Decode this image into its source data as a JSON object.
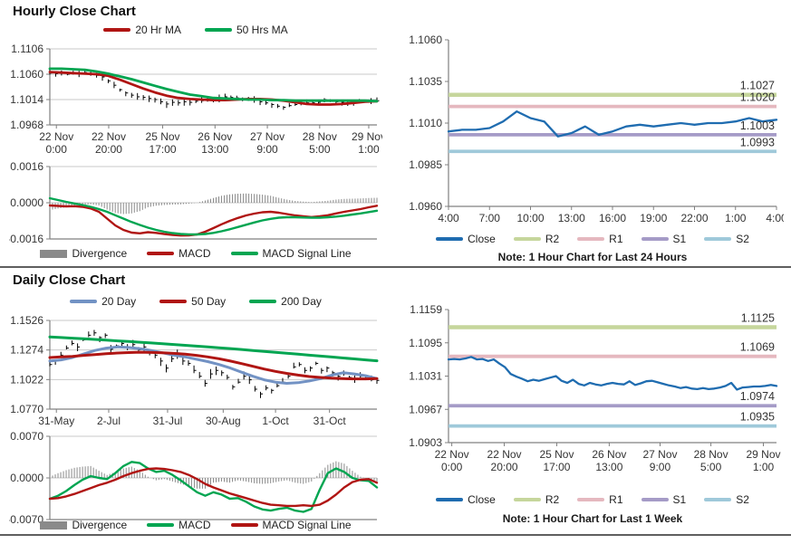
{
  "sections": [
    {
      "title": "Hourly Close Chart"
    },
    {
      "title": "Daily Close Chart"
    }
  ],
  "colors": {
    "red": "#b01513",
    "green": "#00a551",
    "blue20": "#7292c4",
    "close_blue": "#1f6cb0",
    "r2": "#c6d69c",
    "r1": "#e5b8bf",
    "s1": "#a59bc7",
    "s2": "#9fc9da",
    "divergence": "#8a8a8a",
    "price": "#000000",
    "grid": "#c9c9c9",
    "axis": "#808080"
  },
  "chart_data": [
    {
      "id": "hourly_close",
      "type": "line",
      "title": "Hourly Close Chart",
      "ylim": [
        1.0968,
        1.1106
      ],
      "yticks": [
        "1.0968",
        "1.1014",
        "1.1060",
        "1.1106"
      ],
      "xticks": [
        [
          "22 Nov",
          "0:00"
        ],
        [
          "22 Nov",
          "20:00"
        ],
        [
          "25 Nov",
          "17:00"
        ],
        [
          "26 Nov",
          "13:00"
        ],
        [
          "27 Nov",
          "9:00"
        ],
        [
          "28 Nov",
          "5:00"
        ],
        [
          "29 Nov",
          "1:00"
        ]
      ],
      "xtick_pos": [
        0.02,
        0.18,
        0.345,
        0.505,
        0.665,
        0.825,
        0.975
      ],
      "grid": true,
      "series": [
        {
          "name": "Close",
          "kind": "pricebars",
          "color": "#000000",
          "legend": false,
          "wick": 0.0006,
          "values": [
            1.1062,
            1.1061,
            1.1062,
            1.106,
            1.1062,
            1.1061,
            1.1063,
            1.106,
            1.1058,
            1.1055,
            1.1048,
            1.104,
            1.1032,
            1.1026,
            1.1022,
            1.1019,
            1.1018,
            1.1016,
            1.1014,
            1.101,
            1.1006,
            1.1009,
            1.1008,
            1.101,
            1.1009,
            1.1011,
            1.1012,
            1.1013,
            1.1014,
            1.1016,
            1.1019,
            1.1018,
            1.1017,
            1.1015,
            1.1014,
            1.1013,
            1.101,
            1.1008,
            1.1005,
            1.1002,
            1.1,
            1.1003,
            1.1005,
            1.1007,
            1.1008,
            1.1008,
            1.1009,
            1.1014,
            1.1012,
            1.101,
            1.1009,
            1.1008,
            1.1009,
            1.101,
            1.1011,
            1.1012,
            1.1012
          ]
        },
        {
          "name": "20 Hr MA",
          "kind": "line",
          "color": "#b01513",
          "width": 2.8,
          "values": [
            1.1064,
            1.1063,
            1.1062,
            1.1061,
            1.106,
            1.1057,
            1.105,
            1.1042,
            1.1034,
            1.1027,
            1.1021,
            1.1017,
            1.1015,
            1.1014,
            1.1013,
            1.1013,
            1.1014,
            1.1015,
            1.1015,
            1.1014,
            1.1012,
            1.1009,
            1.1006,
            1.1005,
            1.1005,
            1.1006,
            1.1008,
            1.101,
            1.1011
          ]
        },
        {
          "name": "50 Hrs MA",
          "kind": "line",
          "color": "#00a551",
          "width": 2.8,
          "values": [
            1.107,
            1.107,
            1.1069,
            1.1068,
            1.1065,
            1.1061,
            1.1056,
            1.1051,
            1.1045,
            1.1039,
            1.1033,
            1.1028,
            1.1023,
            1.102,
            1.1017,
            1.1016,
            1.1015,
            1.1014,
            1.1014,
            1.1013,
            1.1013,
            1.1012,
            1.1012,
            1.1012,
            1.1012,
            1.1012,
            1.1012,
            1.1012,
            1.1011
          ]
        }
      ]
    },
    {
      "id": "hourly_macd",
      "type": "line",
      "ylim": [
        -0.0016,
        0.0016
      ],
      "yticks": [
        "-0.0016",
        "0.0000",
        "0.0016"
      ],
      "xticks": [],
      "xtick_pos": [],
      "grid": true,
      "series": [
        {
          "name": "Divergence",
          "kind": "bars",
          "color": "#8a8a8a",
          "values": [
            -0.00032,
            -0.00026,
            -0.0002,
            -0.00012,
            -8e-05,
            -7e-05,
            -0.00012,
            -0.0003,
            -0.00045,
            -0.0005,
            -0.00047,
            -0.00037,
            -0.0002,
            -0.00013,
            -0.0001,
            -8e-05,
            -7e-05,
            -4e-05,
            0,
            0.0001,
            0.00021,
            0.00031,
            0.00037,
            0.0004,
            0.00041,
            0.00039,
            0.00036,
            0.00031,
            0.00022,
            0.00014,
            8e-05,
            5e-05,
            3e-05,
            6e-05,
            9e-05,
            0.00014,
            0.00017,
            0.00018,
            0.00019,
            0.00021,
            0.00022
          ]
        },
        {
          "name": "MACD",
          "kind": "line",
          "color": "#b01513",
          "width": 2.4,
          "values": [
            -0.00012,
            -0.00014,
            -0.00016,
            -0.00015,
            -0.00018,
            -0.00025,
            -0.0004,
            -0.0007,
            -0.001,
            -0.0012,
            -0.00132,
            -0.00135,
            -0.0013,
            -0.00133,
            -0.00138,
            -0.00142,
            -0.00145,
            -0.00144,
            -0.0014,
            -0.00128,
            -0.00112,
            -0.00095,
            -0.0008,
            -0.00067,
            -0.00056,
            -0.00048,
            -0.00042,
            -0.0004,
            -0.00044,
            -0.0005,
            -0.00056,
            -0.0006,
            -0.00063,
            -0.0006,
            -0.00055,
            -0.00047,
            -0.0004,
            -0.00034,
            -0.00028,
            -0.0002,
            -0.00013
          ]
        },
        {
          "name": "MACD Signal Line",
          "kind": "line",
          "color": "#00a551",
          "width": 2.4,
          "values": [
            0.0002,
            0.00012,
            4e-05,
            -3e-05,
            -0.0001,
            -0.00018,
            -0.00028,
            -0.0004,
            -0.00055,
            -0.0007,
            -0.00085,
            -0.00098,
            -0.0011,
            -0.0012,
            -0.00128,
            -0.00134,
            -0.00138,
            -0.0014,
            -0.0014,
            -0.00138,
            -0.00133,
            -0.00126,
            -0.00117,
            -0.00107,
            -0.00097,
            -0.00087,
            -0.00078,
            -0.00071,
            -0.00066,
            -0.00064,
            -0.00064,
            -0.00065,
            -0.00066,
            -0.00066,
            -0.00064,
            -0.00061,
            -0.00057,
            -0.00052,
            -0.00047,
            -0.00041,
            -0.00035
          ]
        }
      ]
    },
    {
      "id": "hourly_pivot",
      "type": "line",
      "note": "Note: 1 Hour Chart for Last 24 Hours",
      "ylim": [
        1.096,
        1.106
      ],
      "yticks": [
        "1.0960",
        "1.0985",
        "1.1010",
        "1.1035",
        "1.1060"
      ],
      "xticks": [
        "4:00",
        "7:00",
        "10:00",
        "13:00",
        "16:00",
        "19:00",
        "22:00",
        "1:00",
        "4:00"
      ],
      "xtick_pos": [
        0,
        0.125,
        0.25,
        0.375,
        0.5,
        0.625,
        0.75,
        0.875,
        1
      ],
      "grid": false,
      "series": [
        {
          "name": "Close",
          "kind": "line",
          "color": "#1f6cb0",
          "width": 2.3,
          "values": [
            1.1005,
            1.1006,
            1.1006,
            1.1007,
            1.1011,
            1.1017,
            1.1013,
            1.1011,
            1.1002,
            1.1004,
            1.1008,
            1.1003,
            1.1005,
            1.1008,
            1.1009,
            1.1008,
            1.1009,
            1.101,
            1.1009,
            1.101,
            1.101,
            1.1011,
            1.1013,
            1.1011,
            1.1012
          ]
        }
      ],
      "hlines": [
        {
          "name": "R2",
          "value": 1.1027,
          "label": "1.1027",
          "color": "#c6d69c",
          "width": 4.5
        },
        {
          "name": "R1",
          "value": 1.102,
          "label": "1.1020",
          "color": "#e5b8bf",
          "width": 3.8
        },
        {
          "name": "S1",
          "value": 1.1003,
          "label": "1.1003",
          "color": "#a59bc7",
          "width": 3.8
        },
        {
          "name": "S2",
          "value": 1.0993,
          "label": "1.0993",
          "color": "#9fc9da",
          "width": 3.8
        }
      ]
    },
    {
      "id": "daily_close",
      "type": "line",
      "title": "Daily Close Chart",
      "ylim": [
        1.077,
        1.1526
      ],
      "yticks": [
        "1.0770",
        "1.1022",
        "1.1274",
        "1.1526"
      ],
      "xticks": [
        "31-May",
        "2-Jul",
        "31-Jul",
        "30-Aug",
        "1-Oct",
        "31-Oct"
      ],
      "xtick_pos": [
        0.02,
        0.18,
        0.36,
        0.53,
        0.69,
        0.855
      ],
      "grid": true,
      "series": [
        {
          "name": "Close",
          "kind": "pricebars",
          "color": "#000000",
          "legend": false,
          "wick": 0.0035,
          "values": [
            1.115,
            1.118,
            1.123,
            1.129,
            1.133,
            1.13,
            1.136,
            1.14,
            1.142,
            1.138,
            1.14,
            1.128,
            1.131,
            1.133,
            1.13,
            1.132,
            1.1275,
            1.13,
            1.126,
            1.123,
            1.118,
            1.112,
            1.12,
            1.124,
            1.118,
            1.116,
            1.11,
            1.105,
            1.099,
            1.107,
            1.11,
            1.108,
            1.104,
            1.096,
            1.1,
            1.105,
            1.102,
            1.094,
            1.09,
            1.095,
            1.093,
            1.097,
            1.1,
            1.105,
            1.113,
            1.115,
            1.11,
            1.112,
            1.116,
            1.11,
            1.112,
            1.108,
            1.105,
            1.107,
            1.104,
            1.103,
            1.105,
            1.103,
            1.102,
            1.1015
          ]
        },
        {
          "name": "20 Day",
          "kind": "line",
          "color": "#7292c4",
          "width": 3,
          "values": [
            1.118,
            1.119,
            1.121,
            1.124,
            1.127,
            1.129,
            1.13,
            1.1295,
            1.1285,
            1.127,
            1.125,
            1.123,
            1.1215,
            1.1195,
            1.1175,
            1.115,
            1.112,
            1.1085,
            1.105,
            1.102,
            1.1,
            1.099,
            1.0995,
            1.101,
            1.103,
            1.106,
            1.108,
            1.107,
            1.1055,
            1.103
          ]
        },
        {
          "name": "50 Day",
          "kind": "line",
          "color": "#b01513",
          "width": 3,
          "values": [
            1.121,
            1.1215,
            1.122,
            1.1228,
            1.1235,
            1.1242,
            1.1248,
            1.1252,
            1.1255,
            1.1253,
            1.125,
            1.1245,
            1.1238,
            1.1228,
            1.1215,
            1.12,
            1.118,
            1.1158,
            1.1135,
            1.1112,
            1.1092,
            1.1075,
            1.106,
            1.1048,
            1.104,
            1.1034,
            1.103,
            1.1028,
            1.1028,
            1.103
          ]
        },
        {
          "name": "200 Day",
          "kind": "line",
          "color": "#00a551",
          "width": 3,
          "values": [
            1.1385,
            1.138,
            1.1375,
            1.137,
            1.1364,
            1.1358,
            1.1352,
            1.1346,
            1.134,
            1.1334,
            1.1328,
            1.1321,
            1.1314,
            1.1307,
            1.13,
            1.1293,
            1.1286,
            1.1278,
            1.127,
            1.1262,
            1.1254,
            1.1246,
            1.1238,
            1.123,
            1.1222,
            1.1214,
            1.1206,
            1.1198,
            1.119,
            1.1182
          ]
        }
      ]
    },
    {
      "id": "daily_macd",
      "type": "line",
      "ylim": [
        -0.007,
        0.007
      ],
      "yticks": [
        "-0.0070",
        "0.0000",
        "0.0070"
      ],
      "xticks": [],
      "xtick_pos": [],
      "grid": true,
      "series": [
        {
          "name": "Divergence",
          "kind": "bars",
          "color": "#8a8a8a",
          "values": [
            0.0002,
            0.0008,
            0.0013,
            0.0017,
            0.0019,
            0.002,
            0.0012,
            0.0005,
            0.001,
            0.0016,
            0.0019,
            0.0012,
            0.0002,
            -0.0004,
            -0.0002,
            -0.0006,
            -0.001,
            -0.0014,
            -0.0018,
            -0.0018,
            -0.0008,
            -0.0006,
            -0.0008,
            -0.0004,
            -0.0006,
            -0.0009,
            -0.001,
            -0.0009,
            -0.0006,
            -0.0004,
            -0.0008,
            -0.001,
            -0.0006,
            0.0008,
            0.0022,
            0.0028,
            0.0024,
            0.0012,
            0.0002,
            -0.0002,
            -0.0006
          ]
        },
        {
          "name": "MACD",
          "kind": "line",
          "color": "#00a551",
          "width": 2.4,
          "values": [
            -0.0035,
            -0.003,
            -0.0022,
            -0.0012,
            -0.0003,
            0.0003,
            0.0,
            -0.0002,
            0.0008,
            0.002,
            0.0027,
            0.0025,
            0.0016,
            0.001,
            0.0012,
            0.0005,
            -0.0004,
            -0.0014,
            -0.0024,
            -0.003,
            -0.0024,
            -0.0028,
            -0.0035,
            -0.0034,
            -0.004,
            -0.0048,
            -0.0053,
            -0.0055,
            -0.0052,
            -0.005,
            -0.0055,
            -0.0057,
            -0.0052,
            -0.002,
            0.0008,
            0.0016,
            0.001,
            0.0,
            -0.0004,
            -0.0005,
            -0.0016
          ]
        },
        {
          "name": "MACD Signal Line",
          "kind": "line",
          "color": "#b01513",
          "width": 2.4,
          "values": [
            -0.0035,
            -0.0034,
            -0.0031,
            -0.0027,
            -0.0022,
            -0.0017,
            -0.0012,
            -0.0008,
            -0.0003,
            0.0003,
            0.0008,
            0.0012,
            0.0015,
            0.0016,
            0.0015,
            0.0013,
            0.001,
            0.0005,
            -0.0002,
            -0.001,
            -0.0016,
            -0.0021,
            -0.0026,
            -0.003,
            -0.0034,
            -0.0038,
            -0.0042,
            -0.0045,
            -0.0046,
            -0.0047,
            -0.0047,
            -0.0046,
            -0.0047,
            -0.0045,
            -0.0038,
            -0.0028,
            -0.0016,
            -0.0007,
            -0.0003,
            -0.0002,
            -0.0008
          ]
        }
      ]
    },
    {
      "id": "daily_pivot",
      "type": "line",
      "note": "Note: 1 Hour Chart for Last 1 Week",
      "ylim": [
        1.0903,
        1.1159
      ],
      "yticks": [
        "1.0903",
        "1.0967",
        "1.1031",
        "1.1095",
        "1.1159"
      ],
      "xticks": [
        [
          "22 Nov",
          "0:00"
        ],
        [
          "22 Nov",
          "20:00"
        ],
        [
          "25 Nov",
          "17:00"
        ],
        [
          "26 Nov",
          "13:00"
        ],
        [
          "27 Nov",
          "9:00"
        ],
        [
          "28 Nov",
          "5:00"
        ],
        [
          "29 Nov",
          "1:00"
        ]
      ],
      "xtick_pos": [
        0.01,
        0.17,
        0.33,
        0.49,
        0.645,
        0.8,
        0.96
      ],
      "grid": false,
      "series": [
        {
          "name": "Close",
          "kind": "line",
          "color": "#1f6cb0",
          "width": 2.3,
          "values": [
            1.1063,
            1.1064,
            1.1063,
            1.1065,
            1.1068,
            1.1063,
            1.1064,
            1.106,
            1.1063,
            1.1055,
            1.1048,
            1.1035,
            1.103,
            1.1026,
            1.1021,
            1.1024,
            1.1022,
            1.1025,
            1.1028,
            1.1031,
            1.1022,
            1.1018,
            1.1024,
            1.1016,
            1.1013,
            1.1018,
            1.1015,
            1.1013,
            1.1016,
            1.1018,
            1.1016,
            1.1015,
            1.1021,
            1.1014,
            1.1017,
            1.1021,
            1.1022,
            1.1019,
            1.1016,
            1.1013,
            1.1011,
            1.1008,
            1.101,
            1.1007,
            1.1006,
            1.1008,
            1.1006,
            1.1007,
            1.1009,
            1.1012,
            1.1018,
            1.1005,
            1.1009,
            1.101,
            1.1011,
            1.1011,
            1.1012,
            1.1014,
            1.1012
          ]
        }
      ],
      "hlines": [
        {
          "name": "R2",
          "value": 1.1125,
          "label": "1.1125",
          "color": "#c6d69c",
          "width": 4.5
        },
        {
          "name": "R1",
          "value": 1.1069,
          "label": "1.1069",
          "color": "#e5b8bf",
          "width": 3.8
        },
        {
          "name": "S1",
          "value": 1.0974,
          "label": "1.0974",
          "color": "#a59bc7",
          "width": 3.8
        },
        {
          "name": "S2",
          "value": 1.0935,
          "label": "1.0935",
          "color": "#9fc9da",
          "width": 3.8
        }
      ]
    }
  ]
}
